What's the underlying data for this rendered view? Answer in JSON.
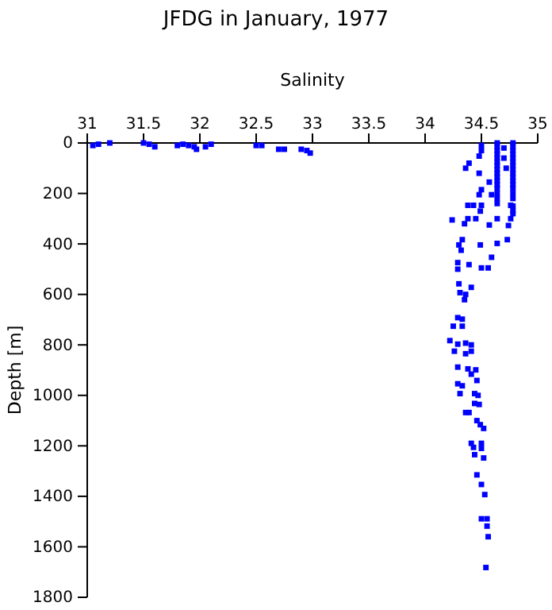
{
  "chart_data": {
    "type": "scatter",
    "title": "JFDG in January, 1977",
    "xlabel": "Salinity",
    "ylabel": "Depth [m]",
    "xlim": [
      31,
      35
    ],
    "xticks": [
      31,
      31.5,
      32,
      32.5,
      33,
      33.5,
      34,
      34.5,
      35
    ],
    "ylim": [
      1800,
      0
    ],
    "yticks": [
      0,
      200,
      400,
      600,
      800,
      1000,
      1200,
      1400,
      1600,
      1800
    ],
    "marker": "square",
    "series": [
      {
        "color": "#0000ff",
        "x": [
          31.05,
          31.1,
          31.2,
          31.5,
          31.55,
          31.6,
          31.8,
          31.85,
          31.9,
          31.95,
          31.97,
          32.05,
          32.1,
          32.5,
          32.55,
          32.7,
          32.75,
          32.9,
          32.95,
          32.98,
          34.5,
          34.5,
          34.48,
          34.39,
          34.36,
          34.48,
          34.57,
          34.5,
          34.59,
          34.48,
          34.38,
          34.5,
          34.43,
          34.49,
          34.76,
          34.78,
          34.24,
          34.38,
          34.45,
          34.35,
          34.57,
          34.64,
          34.76,
          34.74,
          34.33,
          34.3,
          34.49,
          34.64,
          34.73,
          34.32,
          34.59,
          34.29,
          34.39,
          34.29,
          34.5,
          34.56,
          34.3,
          34.41,
          34.31,
          34.36,
          34.35,
          34.29,
          34.33,
          34.25,
          34.33,
          34.22,
          34.29,
          34.36,
          34.41,
          34.26,
          34.36,
          34.41,
          34.29,
          34.38,
          34.45,
          34.41,
          34.46,
          34.29,
          34.33,
          34.31,
          34.44,
          34.47,
          34.44,
          34.48,
          34.36,
          34.39,
          34.46,
          34.49,
          34.52,
          34.41,
          34.5,
          34.43,
          34.5,
          34.44,
          34.52,
          34.46,
          34.5,
          34.53,
          34.5,
          34.55,
          34.55,
          34.56,
          34.54,
          34.64,
          34.64,
          34.64,
          34.64,
          34.64,
          34.64,
          34.64,
          34.64,
          34.64,
          34.64,
          34.64,
          34.64,
          34.64,
          34.64,
          34.64,
          34.64,
          34.78,
          34.78,
          34.78,
          34.78,
          34.78,
          34.78,
          34.78,
          34.78,
          34.78,
          34.78,
          34.78,
          34.78,
          34.78,
          34.78,
          34.78,
          34.78,
          34.78,
          34.7,
          34.7,
          34.72
        ],
        "values": [
          10,
          5,
          0,
          0,
          5,
          15,
          10,
          5,
          10,
          15,
          25,
          15,
          5,
          10,
          10,
          25,
          25,
          25,
          30,
          40,
          10,
          30,
          52,
          80,
          100,
          120,
          155,
          185,
          205,
          205,
          247,
          247,
          247,
          270,
          247,
          268,
          305,
          300,
          300,
          320,
          325,
          300,
          300,
          327,
          383,
          404,
          404,
          398,
          383,
          425,
          453,
          474,
          482,
          500,
          495,
          495,
          558,
          572,
          593,
          600,
          621,
          692,
          698,
          726,
          726,
          783,
          797,
          793,
          800,
          825,
          835,
          825,
          888,
          895,
          899,
          916,
          941,
          954,
          962,
          993,
          993,
          1000,
          1032,
          1036,
          1068,
          1068,
          1100,
          1116,
          1131,
          1190,
          1190,
          1206,
          1210,
          1235,
          1248,
          1315,
          1353,
          1393,
          1489,
          1489,
          1518,
          1560,
          1682,
          0,
          15,
          30,
          45,
          60,
          75,
          90,
          105,
          120,
          135,
          150,
          165,
          180,
          200,
          220,
          240,
          0,
          15,
          30,
          45,
          60,
          75,
          90,
          105,
          120,
          135,
          150,
          165,
          180,
          200,
          220,
          250,
          280,
          20,
          60,
          100
        ]
      }
    ]
  }
}
